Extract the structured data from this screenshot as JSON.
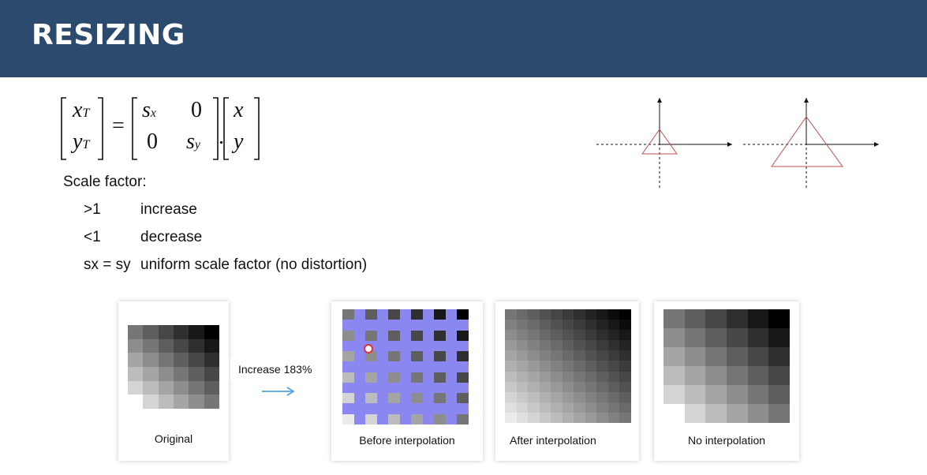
{
  "header": {
    "title": "RESIZING"
  },
  "equation": {
    "lhs_top": "x",
    "lhs_top_sub": "T",
    "lhs_bot": "y",
    "lhs_bot_sub": "T",
    "equals": "=",
    "m11": "s",
    "m11_sub": "x",
    "m12": "0",
    "m21": "0",
    "m22": "s",
    "m22_sub": "y",
    "dot": ".",
    "rhs_top": "x",
    "rhs_bot": "y"
  },
  "scale": {
    "title": "Scale factor:",
    "rows": [
      {
        "key": ">1",
        "value": "increase"
      },
      {
        "key": "<1",
        "value": "decrease"
      },
      {
        "key": "sx = sy",
        "value": "uniform scale factor (no distortion)"
      }
    ]
  },
  "images": {
    "original": {
      "caption": "Original"
    },
    "arrow_label": "Increase 183%",
    "before": {
      "caption": "Before interpolation"
    },
    "after": {
      "caption": "After interpolation"
    },
    "none": {
      "caption": "No interpolation"
    }
  },
  "colors": {
    "header_bg": "#2c4a6e",
    "arrow": "#5aa6d8",
    "triangle": "#c0504d",
    "interp_fill": "#8a88f0"
  }
}
